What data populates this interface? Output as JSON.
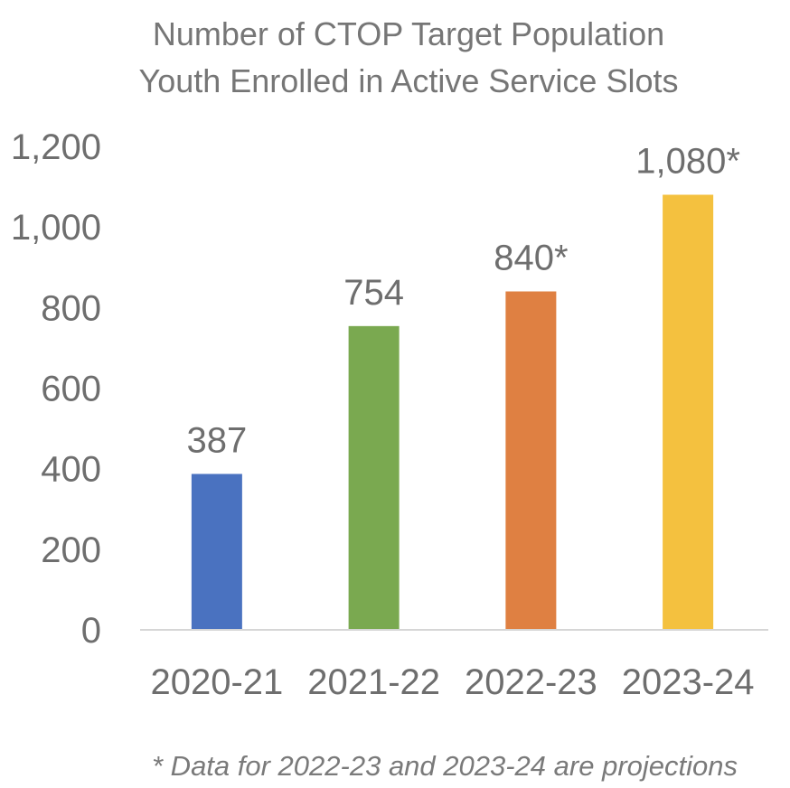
{
  "colors": {
    "bar_1": "#4a72c0",
    "bar_2": "#7aa950",
    "bar_3": "#df8042",
    "bar_4": "#f4c13f",
    "text": "#6e6e6e",
    "axis": "#d6d6d6"
  },
  "chart_data": {
    "type": "bar",
    "title": [
      "Number of CTOP Target Population",
      "Youth Enrolled in Active Service Slots"
    ],
    "categories": [
      "2020-21",
      "2021-22",
      "2022-23",
      "2023-24"
    ],
    "values": [
      387,
      754,
      840,
      1080
    ],
    "data_labels": [
      "387",
      "754",
      "840*",
      "1,080*"
    ],
    "ylim": [
      0,
      1200
    ],
    "yticks": [
      "0",
      "200",
      "400",
      "600",
      "800",
      "1,000",
      "1,200"
    ],
    "grid": false,
    "legend": "none",
    "footnote": "* Data for 2022-23 and 2023-24 are projections"
  }
}
